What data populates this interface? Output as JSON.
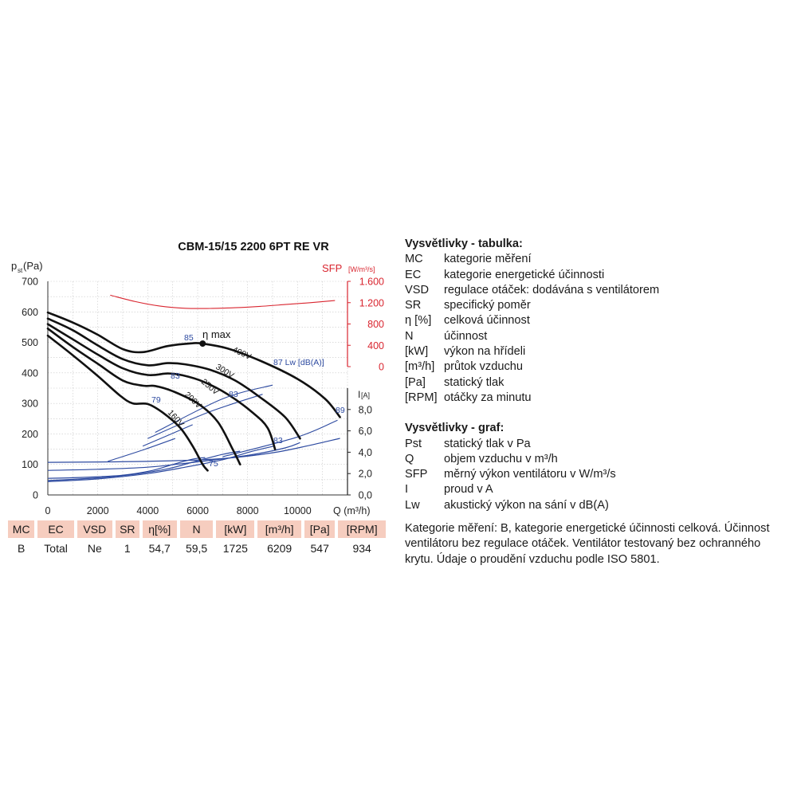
{
  "chart_data": {
    "type": "line",
    "title": "CBM-15/15 2200 6PT RE VR",
    "y_label": "pst(Pa)",
    "y_label_main": "p",
    "y_label_sub": "st",
    "y_label_unit": "(Pa)",
    "x_label": "Q (m³/h)",
    "sfp_label": "SFP",
    "sfp_unit": "[W/m³/s]",
    "i_label": "I",
    "i_unit": "[A]",
    "xlim": [
      0,
      12000
    ],
    "ylim": [
      0,
      700
    ],
    "x_ticks": [
      "0",
      "2000",
      "4000",
      "6000",
      "8000",
      "10000"
    ],
    "y_ticks": [
      "0",
      "100",
      "200",
      "300",
      "400",
      "500",
      "600",
      "700"
    ],
    "sfp_ticks": [
      "0",
      "400",
      "800",
      "1.200",
      "1.600"
    ],
    "sfp_range": [
      0,
      1600
    ],
    "i_ticks": [
      "0,0",
      "2,0",
      "4,0",
      "6,0",
      "8,0"
    ],
    "i_range": [
      0,
      10
    ],
    "colors": {
      "pressure": "#111111",
      "sfp": "#d9252f",
      "current": "#2d4aa0",
      "label_blue": "#2d4aa0"
    },
    "pressure_series": [
      {
        "name": "400V",
        "points": [
          [
            0,
            598
          ],
          [
            1000,
            565
          ],
          [
            2000,
            525
          ],
          [
            3000,
            478
          ],
          [
            3800,
            468
          ],
          [
            4800,
            488
          ],
          [
            5800,
            497
          ],
          [
            6200,
            496
          ],
          [
            7200,
            480
          ],
          [
            8500,
            440
          ],
          [
            10000,
            380
          ],
          [
            11100,
            315
          ],
          [
            11700,
            255
          ]
        ]
      },
      {
        "name": "300V",
        "points": [
          [
            0,
            578
          ],
          [
            1000,
            540
          ],
          [
            2000,
            490
          ],
          [
            3000,
            445
          ],
          [
            4000,
            425
          ],
          [
            4800,
            432
          ],
          [
            5500,
            428
          ],
          [
            6500,
            410
          ],
          [
            7500,
            375
          ],
          [
            8500,
            320
          ],
          [
            9500,
            255
          ],
          [
            10100,
            185
          ]
        ]
      },
      {
        "name": "250V",
        "points": [
          [
            0,
            560
          ],
          [
            1000,
            510
          ],
          [
            2000,
            460
          ],
          [
            3000,
            415
          ],
          [
            4000,
            393
          ],
          [
            4800,
            398
          ],
          [
            5400,
            392
          ],
          [
            6200,
            372
          ],
          [
            7200,
            330
          ],
          [
            8200,
            270
          ],
          [
            8800,
            220
          ],
          [
            9100,
            150
          ]
        ]
      },
      {
        "name": "200V",
        "points": [
          [
            0,
            545
          ],
          [
            1000,
            485
          ],
          [
            2000,
            430
          ],
          [
            3000,
            375
          ],
          [
            3800,
            358
          ],
          [
            4300,
            357
          ],
          [
            5000,
            340
          ],
          [
            6000,
            300
          ],
          [
            6800,
            240
          ],
          [
            7400,
            150
          ],
          [
            7700,
            100
          ]
        ]
      },
      {
        "name": "160V",
        "points": [
          [
            0,
            522
          ],
          [
            1000,
            458
          ],
          [
            2000,
            390
          ],
          [
            2900,
            325
          ],
          [
            3400,
            300
          ],
          [
            4000,
            298
          ],
          [
            4600,
            270
          ],
          [
            5300,
            220
          ],
          [
            5800,
            160
          ],
          [
            6200,
            100
          ],
          [
            6400,
            80
          ]
        ]
      }
    ],
    "pressure_labels": [
      "400V",
      "300V",
      "250V",
      "200V",
      "160V"
    ],
    "sfp_curve": [
      [
        2500,
        1340
      ],
      [
        3500,
        1220
      ],
      [
        4500,
        1135
      ],
      [
        5500,
        1095
      ],
      [
        6500,
        1092
      ],
      [
        7500,
        1105
      ],
      [
        8500,
        1130
      ],
      [
        9500,
        1165
      ],
      [
        10500,
        1200
      ],
      [
        11500,
        1240
      ]
    ],
    "current_curves": [
      [
        [
          0,
          1.55
        ],
        [
          1500,
          1.65
        ],
        [
          3000,
          1.85
        ],
        [
          4200,
          2.3
        ],
        [
          5000,
          2.85
        ],
        [
          5800,
          3.35
        ],
        [
          6300,
          3.5
        ]
      ],
      [
        [
          0,
          1.35
        ],
        [
          2000,
          1.6
        ],
        [
          3500,
          1.95
        ],
        [
          4800,
          2.45
        ],
        [
          6000,
          3.2
        ],
        [
          7000,
          3.8
        ],
        [
          7700,
          4.1
        ]
      ],
      [
        [
          0,
          1.25
        ],
        [
          2000,
          1.5
        ],
        [
          4000,
          2.0
        ],
        [
          5500,
          2.6
        ],
        [
          7000,
          3.3
        ],
        [
          8200,
          4.1
        ],
        [
          9100,
          4.6
        ]
      ],
      [
        [
          0,
          2.3
        ],
        [
          2000,
          2.4
        ],
        [
          4000,
          2.6
        ],
        [
          6000,
          3.1
        ],
        [
          8000,
          3.7
        ],
        [
          9500,
          4.4
        ],
        [
          10100,
          4.9
        ]
      ],
      [
        [
          0,
          3.05
        ],
        [
          2500,
          3.1
        ],
        [
          5000,
          3.2
        ],
        [
          7000,
          3.4
        ],
        [
          9000,
          3.95
        ],
        [
          10500,
          4.65
        ],
        [
          11700,
          5.3
        ]
      ]
    ],
    "iso_lines": [
      [
        [
          4300,
          205
        ],
        [
          7000,
          315
        ],
        [
          9000,
          360
        ]
      ],
      [
        [
          4000,
          185
        ],
        [
          6400,
          270
        ],
        [
          8600,
          330
        ]
      ],
      [
        [
          3800,
          160
        ],
        [
          5800,
          230
        ]
      ],
      [
        [
          2400,
          110
        ],
        [
          3900,
          150
        ],
        [
          5100,
          185
        ]
      ],
      [
        [
          7000,
          125
        ],
        [
          10000,
          190
        ],
        [
          11600,
          245
        ]
      ]
    ],
    "eta_max_label": "η max",
    "eta_max_point": [
      6200,
      496
    ],
    "lw_label": "87 Lw [dB(A)]",
    "efficiency_labels": [
      "85",
      "83",
      "83",
      "79",
      "75",
      "83",
      "89"
    ]
  },
  "table": {
    "headers": [
      "MC",
      "EC",
      "VSD",
      "SR",
      "η[%]",
      "N",
      "[kW]",
      "[m³/h]",
      "[Pa]",
      "[RPM]"
    ],
    "values": [
      "B",
      "Total",
      "Ne",
      "1",
      "54,7",
      "59,5",
      "1725",
      "6209",
      "547",
      "934"
    ]
  },
  "legend_table": {
    "title": "Vysvětlivky - tabulka:",
    "items": [
      {
        "key": "MC",
        "desc": "kategorie měření"
      },
      {
        "key": "EC",
        "desc": "kategorie energetické účinnosti"
      },
      {
        "key": "VSD",
        "desc": "regulace otáček: dodávána s ventilátorem"
      },
      {
        "key": "SR",
        "desc": "specifický poměr"
      },
      {
        "key": "η [%]",
        "desc": "celková účinnost"
      },
      {
        "key": "N",
        "desc": "účinnost"
      },
      {
        "key": "[kW]",
        "desc": "výkon na hřídeli"
      },
      {
        "key": "[m³/h]",
        "desc": "průtok vzduchu"
      },
      {
        "key": "[Pa]",
        "desc": "statický tlak"
      },
      {
        "key": "[RPM]",
        "desc": "otáčky za minutu"
      }
    ]
  },
  "legend_graph": {
    "title": "Vysvětlivky - graf:",
    "items": [
      {
        "key": "Pst",
        "desc": "statický tlak v Pa"
      },
      {
        "key": "Q",
        "desc": "objem vzduchu v m³/h"
      },
      {
        "key": "SFP",
        "desc": "měrný výkon ventilátoru v W/m³/s"
      },
      {
        "key": "I",
        "desc": "proud v A"
      },
      {
        "key": "Lw",
        "desc": "akustický výkon na sání v dB(A)"
      }
    ]
  },
  "note_lines": [
    "Kategorie měření: B, kategorie energetické účinnosti celková. Účinnost",
    "ventilátoru bez regulace otáček. Ventilátor testovaný bez ochranného",
    "krytu. Údaje o proudění vzduchu podle ISO 5801."
  ]
}
